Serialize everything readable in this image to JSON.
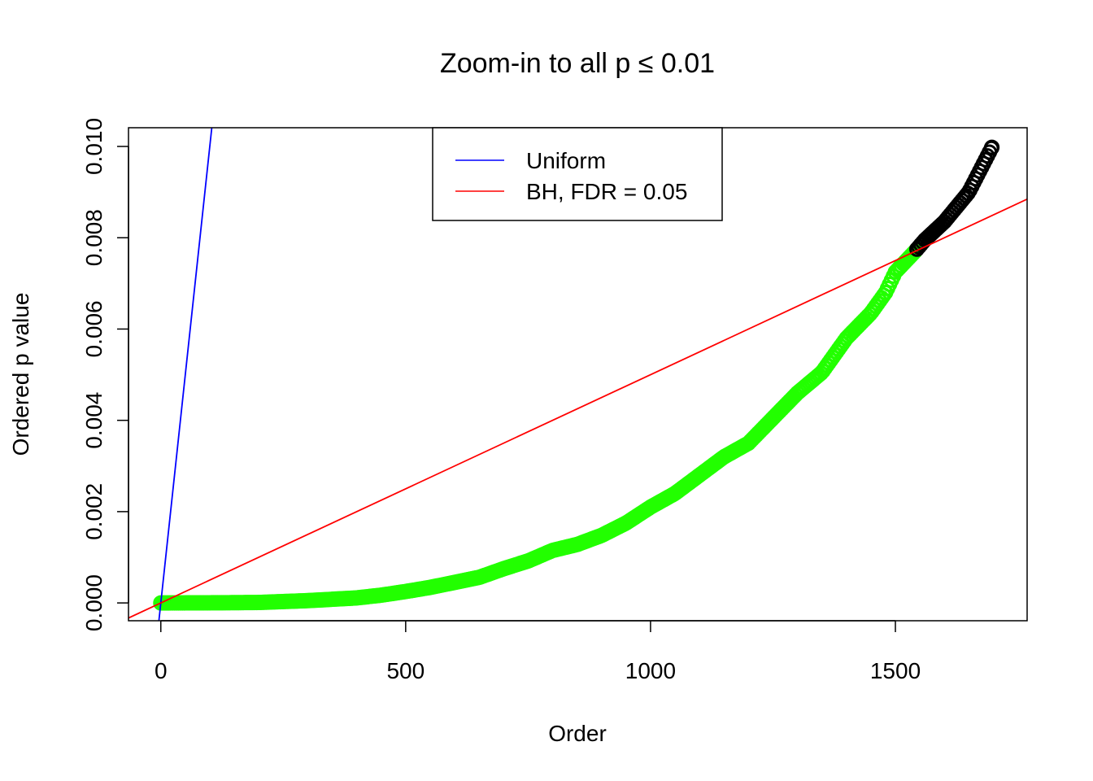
{
  "chart_data": {
    "type": "scatter",
    "title": "Zoom-in to all p ≤ 0.01",
    "xlabel": "Order",
    "ylabel": "Ordered p value",
    "xlim": [
      -66,
      1769
    ],
    "ylim": [
      -0.00039,
      0.01041
    ],
    "xticks": [
      0,
      500,
      1000,
      1500
    ],
    "xtick_labels": [
      "0",
      "500",
      "1000",
      "1500"
    ],
    "yticks": [
      0,
      0.002,
      0.004,
      0.006,
      0.008,
      0.01
    ],
    "ytick_labels": [
      "0.000",
      "0.002",
      "0.004",
      "0.006",
      "0.008",
      "0.010"
    ],
    "grid": false,
    "legend": {
      "placement": "top",
      "entries": [
        {
          "label": "Uniform",
          "color": "#0000FF"
        },
        {
          "label": "BH, FDR = 0.05",
          "color": "#FF0000"
        }
      ]
    },
    "lines": [
      {
        "name": "Uniform",
        "intercept": 0,
        "slope": 0.0001,
        "color": "#0000FF"
      },
      {
        "name": "BH, FDR = 0.05",
        "intercept": 0,
        "slope": 5e-06,
        "color": "#FF0000"
      }
    ],
    "points": {
      "significant_color": "#22FF00",
      "nonsignificant_color": "#000000",
      "last_significant_order": 1540,
      "samples": [
        [
          0,
          0
        ],
        [
          50,
          1e-06
        ],
        [
          100,
          3e-06
        ],
        [
          150,
          6e-06
        ],
        [
          200,
          1e-05
        ],
        [
          250,
          3e-05
        ],
        [
          300,
          5e-05
        ],
        [
          350,
          8e-05
        ],
        [
          400,
          0.00011
        ],
        [
          450,
          0.00017
        ],
        [
          500,
          0.00025
        ],
        [
          550,
          0.00034
        ],
        [
          600,
          0.00045
        ],
        [
          650,
          0.00056
        ],
        [
          700,
          0.00075
        ],
        [
          750,
          0.00092
        ],
        [
          800,
          0.00115
        ],
        [
          850,
          0.00128
        ],
        [
          900,
          0.00148
        ],
        [
          950,
          0.00175
        ],
        [
          1000,
          0.0021
        ],
        [
          1050,
          0.0024
        ],
        [
          1100,
          0.0028
        ],
        [
          1150,
          0.0032
        ],
        [
          1200,
          0.0035
        ],
        [
          1250,
          0.00405
        ],
        [
          1300,
          0.0046
        ],
        [
          1350,
          0.00505
        ],
        [
          1400,
          0.0058
        ],
        [
          1450,
          0.00635
        ],
        [
          1480,
          0.0068
        ],
        [
          1500,
          0.00725
        ],
        [
          1540,
          0.0077
        ],
        [
          1560,
          0.00795
        ],
        [
          1600,
          0.00835
        ],
        [
          1650,
          0.009
        ],
        [
          1697,
          0.00998
        ]
      ]
    }
  }
}
